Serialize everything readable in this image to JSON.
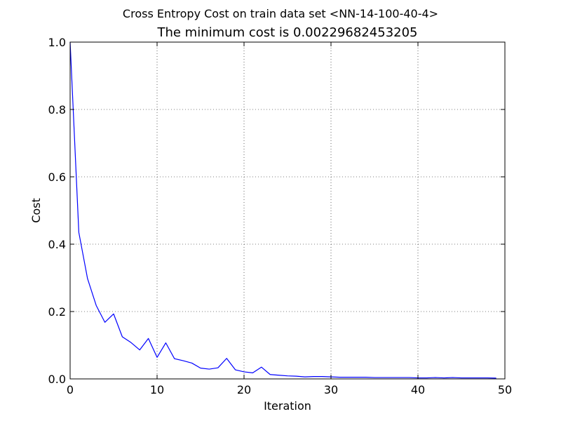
{
  "chart_data": {
    "type": "line",
    "suptitle": "Cross Entropy Cost on train data set <NN-14-100-40-4>",
    "title": "The minimum cost is 0.00229682453205",
    "xlabel": "Iteration",
    "ylabel": "Cost",
    "xlim": [
      0,
      50
    ],
    "ylim": [
      0.0,
      1.0
    ],
    "xticks": [
      0,
      10,
      20,
      30,
      40,
      50
    ],
    "xtick_labels": [
      "0",
      "10",
      "20",
      "30",
      "40",
      "50"
    ],
    "yticks": [
      0.0,
      0.2,
      0.4,
      0.6,
      0.8,
      1.0
    ],
    "ytick_labels": [
      "0.0",
      "0.2",
      "0.4",
      "0.6",
      "0.8",
      "1.0"
    ],
    "grid": true,
    "series": [
      {
        "color": "#0000ff",
        "x": [
          0,
          1,
          2,
          3,
          4,
          5,
          6,
          7,
          8,
          9,
          10,
          11,
          12,
          13,
          14,
          15,
          16,
          17,
          18,
          19,
          20,
          21,
          22,
          23,
          24,
          25,
          26,
          27,
          28,
          29,
          30,
          31,
          32,
          33,
          34,
          35,
          36,
          37,
          38,
          39,
          40,
          41,
          42,
          43,
          44,
          45,
          46,
          47,
          48,
          49
        ],
        "y": [
          1.0,
          0.435,
          0.298,
          0.218,
          0.168,
          0.193,
          0.125,
          0.108,
          0.086,
          0.12,
          0.064,
          0.107,
          0.06,
          0.054,
          0.047,
          0.032,
          0.029,
          0.033,
          0.061,
          0.027,
          0.021,
          0.018,
          0.035,
          0.013,
          0.011,
          0.009,
          0.008,
          0.006,
          0.007,
          0.007,
          0.006,
          0.005,
          0.005,
          0.005,
          0.005,
          0.004,
          0.004,
          0.004,
          0.004,
          0.004,
          0.003,
          0.003,
          0.004,
          0.003,
          0.004,
          0.003,
          0.003,
          0.003,
          0.003,
          0.0023
        ]
      }
    ]
  }
}
